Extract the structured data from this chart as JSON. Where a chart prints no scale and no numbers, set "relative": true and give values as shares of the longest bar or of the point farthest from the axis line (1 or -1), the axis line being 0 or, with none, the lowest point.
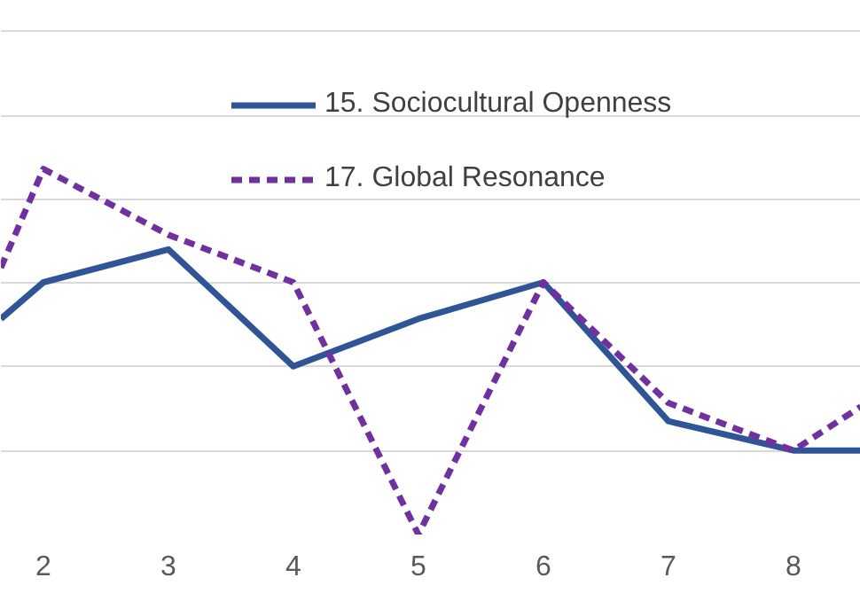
{
  "chart_data": {
    "type": "line",
    "relative": true,
    "x": [
      1.66,
      2,
      3,
      4,
      5,
      6,
      7,
      8,
      8.54
    ],
    "xlim": [
      1.66,
      8.54
    ],
    "xticks": [
      2,
      3,
      4,
      5,
      6,
      7,
      8
    ],
    "grid": "y",
    "legend": "top right",
    "tick_labels": "x",
    "series": [
      {
        "name": "15. Sociocultural Openness",
        "color": "#2f5597",
        "line_style": "solid",
        "values": [
          0.59,
          0.69,
          0.78,
          0.46,
          0.59,
          0.69,
          0.31,
          0.23,
          0.23
        ]
      },
      {
        "name": "17. Global Resonance",
        "color": "#7030a0",
        "line_style": "dashed",
        "values": [
          0.73,
          1,
          0.82,
          0.69,
          0,
          0.69,
          0.36,
          0.23,
          0.35
        ]
      }
    ]
  }
}
